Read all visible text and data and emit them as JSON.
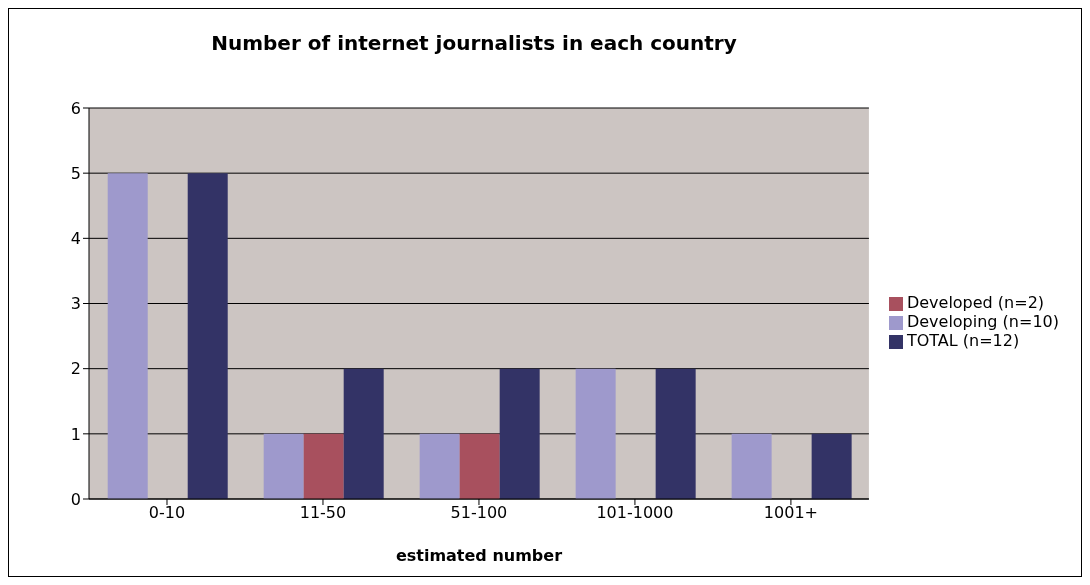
{
  "chart_data": {
    "type": "bar",
    "title": "Number of internet journalists in each country",
    "xlabel": "estimated number",
    "categories": [
      "0-10",
      "11-50",
      "51-100",
      "101-1000",
      "1001+"
    ],
    "series": [
      {
        "name": "Developing (n=10)",
        "color": "#9e99cc",
        "values": [
          5,
          1,
          1,
          2,
          1
        ]
      },
      {
        "name": "Developed (n=2)",
        "color": "#a8505e",
        "values": [
          0,
          1,
          1,
          0,
          0
        ]
      },
      {
        "name": "TOTAL (n=12)",
        "color": "#333366",
        "values": [
          5,
          2,
          2,
          2,
          1
        ]
      }
    ],
    "ylim": [
      0,
      6
    ],
    "yticks": [
      0,
      1,
      2,
      3,
      4,
      5,
      6
    ],
    "grid": "y",
    "legend": "right"
  }
}
